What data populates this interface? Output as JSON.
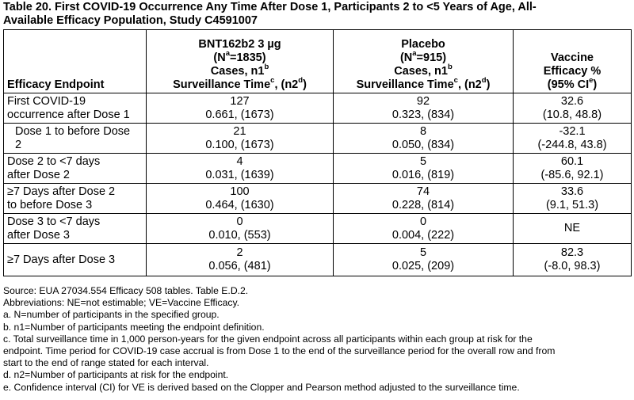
{
  "title_line1": "Table 20. First COVID-19 Occurrence Any Time After Dose 1, Participants 2 to <5 Years of Age, All-",
  "title_line2": "Available Efficacy Population, Study C4591007",
  "headers": {
    "endpoint": "Efficacy Endpoint",
    "bnt": {
      "l1": "BNT162b2 3 µg",
      "l2_pre": "(N",
      "l2_sup": "a",
      "l2_post": "=1835)",
      "l3_pre": "Cases, n1",
      "l3_sup": "b",
      "l4_pre": "Surveillance Time",
      "l4_sup1": "c",
      "l4_mid": ", (n2",
      "l4_sup2": "d",
      "l4_post": ")"
    },
    "placebo": {
      "l1": "Placebo",
      "l2_pre": "(N",
      "l2_sup": "a",
      "l2_post": "=915)",
      "l3_pre": "Cases, n1",
      "l3_sup": "b",
      "l4_pre": "Surveillance Time",
      "l4_sup1": "c",
      "l4_mid": ", (n2",
      "l4_sup2": "d",
      "l4_post": ")"
    },
    "ve": {
      "l1": "Vaccine",
      "l2": "Efficacy %",
      "l3_pre": "(95% CI",
      "l3_sup": "e",
      "l3_post": ")"
    }
  },
  "rows": [
    {
      "ep1": "First COVID-19",
      "ep2": "occurrence after Dose 1",
      "bnt1": "127",
      "bnt2": "0.661, (1673)",
      "pl1": "92",
      "pl2": "0.323, (834)",
      "ve1": "32.6",
      "ve2": "(10.8, 48.8)"
    },
    {
      "ep1": "Dose 1 to before Dose",
      "ep2": "2",
      "bnt1": "21",
      "bnt2": "0.100, (1673)",
      "pl1": "8",
      "pl2": "0.050, (834)",
      "ve1": "-32.1",
      "ve2": "(-244.8, 43.8)"
    },
    {
      "ep1": "Dose 2 to <7 days",
      "ep2": "after Dose 2",
      "bnt1": "4",
      "bnt2": "0.031, (1639)",
      "pl1": "5",
      "pl2": "0.016, (819)",
      "ve1": "60.1",
      "ve2": "(-85.6, 92.1)"
    },
    {
      "ep1": "≥7 Days after Dose 2",
      "ep2": "to before Dose 3",
      "bnt1": "100",
      "bnt2": "0.464, (1630)",
      "pl1": "74",
      "pl2": "0.228, (814)",
      "ve1": "33.6",
      "ve2": "(9.1, 51.3)"
    },
    {
      "ep1": "Dose 3 to <7 days",
      "ep2": "after Dose 3",
      "bnt1": "0",
      "bnt2": "0.010, (553)",
      "pl1": "0",
      "pl2": "0.004, (222)",
      "ve1": "NE"
    },
    {
      "ep1": "≥7 Days after Dose 3",
      "bnt1": "2",
      "bnt2": "0.056, (481)",
      "pl1": "5",
      "pl2": "0.025, (209)",
      "ve1": "82.3",
      "ve2": "(-8.0, 98.3)"
    }
  ],
  "footnotes": [
    "Source: EUA 27034.554 Efficacy 508 tables. Table E.D.2.",
    "Abbreviations: NE=not estimable; VE=Vaccine Efficacy.",
    "a. N=number of participants in the specified group.",
    "b. n1=Number of participants meeting the endpoint definition.",
    "c. Total surveillance time in 1,000 person-years for the given endpoint across all participants within each group at risk for the",
    "endpoint. Time period for COVID-19 case accrual is from Dose 1 to the end of the surveillance period for the overall row and from",
    "start to the end of range stated for each interval.",
    "d. n2=Number of participants at risk for the endpoint.",
    "e. Confidence interval (CI) for VE is derived based on the Clopper and Pearson method adjusted to the surveillance time."
  ]
}
